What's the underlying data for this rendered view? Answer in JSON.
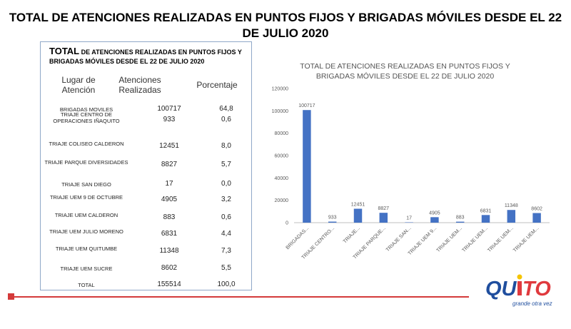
{
  "page": {
    "title": "TOTAL DE ATENCIONES REALIZADAS EN PUNTOS FIJOS Y BRIGADAS MÓVILES DESDE EL 22 DE JULIO 2020"
  },
  "table": {
    "title_big": "TOTAL",
    "title_rest": " DE ATENCIONES REALIZADAS EN PUNTOS FIJOS Y BRIGADAS MÓVILES DESDE EL 22 DE JULIO  2020",
    "headers": {
      "place": "Lugar de Atención",
      "count": "Atenciones Realizadas",
      "percent": "Porcentaje"
    },
    "rows": [
      {
        "name": "BRIGADAS MOVILES",
        "value": "100717",
        "percent": "64,8"
      },
      {
        "name": "TRIAJE CENTRO DE OPERACIONES IÑAQUITO",
        "value": "933",
        "percent": "0,6"
      },
      {
        "name": "TRIAJE COLISEO CALDERON",
        "value": "12451",
        "percent": "8,0"
      },
      {
        "name": "TRIAJE PARQUE DIVERSIDADES",
        "value": "8827",
        "percent": "5,7"
      },
      {
        "name": "TRIAJE SAN DIEGO",
        "value": "17",
        "percent": "0,0"
      },
      {
        "name": "TRIAJE UEM 9 DE OCTUBRE",
        "value": "4905",
        "percent": "3,2"
      },
      {
        "name": "TRIAJE UEM CALDERON",
        "value": "883",
        "percent": "0,6"
      },
      {
        "name": "TRIAJE UEM JULIO MORENO",
        "value": "6831",
        "percent": "4,4"
      },
      {
        "name": "TRIAJE UEM QUITUMBE",
        "value": "11348",
        "percent": "7,3"
      },
      {
        "name": "TRIAJE UEM SUCRE",
        "value": "8602",
        "percent": "5,5"
      },
      {
        "name": "TOTAL",
        "value": "155514",
        "percent": "100,0"
      }
    ]
  },
  "chart_data": {
    "type": "bar",
    "title": "TOTAL DE ATENCIONES REALIZADAS EN PUNTOS FIJOS Y BRIGADAS MÓVILES DESDE EL 22 DE JULIO 2020",
    "categories": [
      "BRIGADAS...",
      "TRIAJE CENTRO...",
      "TRIAJE...",
      "TRIAJE PARQUE...",
      "TRIAJE SAN...",
      "TRIAJE UEM 9...",
      "TRIAJE UEM...",
      "TRIAJE UEM...",
      "TRIAJE UEM...",
      "TRIAJE UEM..."
    ],
    "values": [
      100717,
      933,
      12451,
      8827,
      17,
      4905,
      883,
      6831,
      11348,
      8602
    ],
    "ylim": [
      0,
      120000
    ],
    "yticks": [
      0,
      20000,
      40000,
      60000,
      80000,
      100000,
      120000
    ],
    "xlabel": "",
    "ylabel": "",
    "bar_color": "#4472c4",
    "grid": false,
    "data_labels": true
  },
  "logo": {
    "text": "QUITO",
    "tagline": "grande otra vez",
    "colors": {
      "blue": "#1f4e9e",
      "red": "#e03a3e",
      "yellow": "#f5c400"
    }
  },
  "accent_color": "#d43a3a"
}
